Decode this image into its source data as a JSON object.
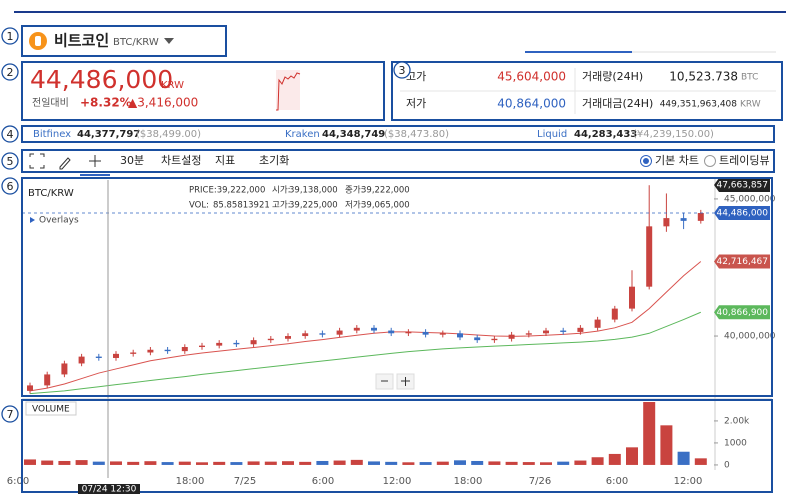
{
  "markers": [
    "1",
    "2",
    "3",
    "4",
    "5",
    "6",
    "7"
  ],
  "header": {
    "coin": "비트코인",
    "pair": "BTC/KRW"
  },
  "price": {
    "value": "44,486,000",
    "unit": "KRW",
    "change_label": "전일대비",
    "change_pct": "+8.32%",
    "change_amt": "▲3,416,000"
  },
  "stats": {
    "high_label": "고가",
    "high": "45,604,000",
    "low_label": "저가",
    "low": "40,864,000",
    "vol_label": "거래량(24H)",
    "vol": "10,523.738",
    "vol_unit": "BTC",
    "amt_label": "거래대금(24H)",
    "amt": "449,351,963,408",
    "amt_unit": "KRW"
  },
  "exchanges": [
    {
      "name": "Bitfinex",
      "price": "44,377,797",
      "alt": "($38,499.00)"
    },
    {
      "name": "Kraken",
      "price": "44,348,749",
      "alt": "($38,473.80)"
    },
    {
      "name": "Liquid",
      "price": "44,283,433",
      "alt": "(¥4,239,150.00)"
    }
  ],
  "toolbar": {
    "interval": "30분",
    "settings": "차트설정",
    "indicators": "지표",
    "reset": "초기화",
    "basic": "기본 차트",
    "tradingview": "트레이딩뷰"
  },
  "chart": {
    "symbol": "BTC/KRW",
    "overlays": "Overlays",
    "info": [
      "PRICE:39,222,000",
      "시가:",
      "39,138,000",
      "종가:",
      "39,222,000",
      "VOL:",
      "85.85813921",
      "고가:",
      "39,225,000",
      "저가:",
      "39,065,000"
    ],
    "ylim": [
      37850000,
      45690000
    ],
    "yticks": [
      {
        "value": 40000000,
        "label": "40,000,000"
      },
      {
        "value": 45000000,
        "label": "45,000,000"
      }
    ],
    "price_tags": [
      {
        "value": 47663857,
        "label": "47,663,857",
        "color": "#222222"
      },
      {
        "value": 44486000,
        "label": "44,486,000",
        "color": "#2f62c0"
      },
      {
        "value": 42716467,
        "label": "42,716,467",
        "color": "#c9544d"
      },
      {
        "value": 40866900,
        "label": "40,866,900",
        "color": "#5cb85c"
      }
    ],
    "up_color": "#c9433f",
    "down_color": "#3a6fc4",
    "open": [
      38000000,
      38200000,
      38600000,
      39000000,
      39250000,
      39200000,
      39350000,
      39400000,
      39500000,
      39450000,
      39600000,
      39650000,
      39750000,
      39700000,
      39850000,
      39900000,
      40000000,
      40100000,
      40050000,
      40200000,
      40300000,
      40200000,
      40100000,
      40150000,
      40050000,
      40100000,
      39950000,
      39850000,
      39900000,
      40050000,
      40100000,
      40200000,
      40150000,
      40300000,
      40600000,
      41000000,
      41800000,
      44000000,
      44300000,
      44200000
    ],
    "high": [
      38300000,
      38700000,
      39100000,
      39350000,
      39350000,
      39450000,
      39500000,
      39600000,
      39600000,
      39700000,
      39750000,
      39850000,
      39850000,
      39950000,
      40000000,
      40100000,
      40200000,
      40200000,
      40300000,
      40400000,
      40400000,
      40300000,
      40250000,
      40250000,
      40200000,
      40200000,
      40050000,
      40000000,
      40150000,
      40200000,
      40300000,
      40300000,
      40400000,
      40700000,
      41100000,
      42400000,
      45500000,
      45200000,
      44500000,
      44600000
    ],
    "low": [
      37900000,
      38100000,
      38500000,
      38900000,
      39100000,
      39100000,
      39250000,
      39300000,
      39350000,
      39350000,
      39500000,
      39550000,
      39600000,
      39600000,
      39750000,
      39800000,
      39900000,
      39950000,
      39950000,
      40100000,
      40100000,
      40000000,
      40000000,
      39950000,
      39950000,
      39850000,
      39750000,
      39750000,
      39800000,
      39950000,
      40000000,
      40050000,
      40050000,
      40200000,
      40500000,
      40900000,
      41700000,
      43800000,
      43900000,
      44100000
    ],
    "close": [
      38200000,
      38600000,
      39000000,
      39250000,
      39200000,
      39350000,
      39400000,
      39500000,
      39450000,
      39600000,
      39650000,
      39750000,
      39700000,
      39850000,
      39900000,
      40000000,
      40100000,
      40050000,
      40200000,
      40300000,
      40200000,
      40100000,
      40150000,
      40050000,
      40100000,
      39950000,
      39850000,
      39900000,
      40050000,
      40100000,
      40200000,
      40150000,
      40300000,
      40600000,
      41000000,
      41800000,
      44000000,
      44300000,
      44200000,
      44486000
    ],
    "ma_short": {
      "color": "#d9534f",
      "values": [
        38000000,
        38100000,
        38250000,
        38450000,
        38650000,
        38800000,
        38950000,
        39100000,
        39200000,
        39300000,
        39380000,
        39450000,
        39520000,
        39580000,
        39650000,
        39720000,
        39800000,
        39870000,
        39950000,
        40030000,
        40100000,
        40150000,
        40150000,
        40130000,
        40110000,
        40080000,
        40040000,
        40000000,
        39990000,
        40000000,
        40030000,
        40060000,
        40100000,
        40180000,
        40300000,
        40500000,
        41000000,
        41600000,
        42200000,
        42716467
      ]
    },
    "ma_long": {
      "color": "#5cb85c",
      "values": [
        37900000,
        37950000,
        38000000,
        38080000,
        38150000,
        38230000,
        38300000,
        38380000,
        38450000,
        38520000,
        38600000,
        38670000,
        38740000,
        38810000,
        38880000,
        38950000,
        39020000,
        39090000,
        39160000,
        39230000,
        39300000,
        39370000,
        39430000,
        39480000,
        39530000,
        39570000,
        39600000,
        39630000,
        39660000,
        39690000,
        39720000,
        39750000,
        39780000,
        39820000,
        39880000,
        39960000,
        40100000,
        40350000,
        40600000,
        40866900
      ]
    },
    "volume_label": "VOLUME",
    "vlim": [
      -230,
      2860
    ],
    "vticks": [
      {
        "value": 2000,
        "label": "2.00k"
      },
      1000,
      0
    ],
    "volume": [
      250,
      200,
      180,
      220,
      150,
      160,
      140,
      170,
      130,
      150,
      120,
      140,
      130,
      160,
      150,
      170,
      140,
      180,
      200,
      230,
      160,
      140,
      120,
      130,
      150,
      210,
      180,
      160,
      140,
      130,
      120,
      150,
      200,
      350,
      500,
      800,
      2900,
      1800,
      600,
      300
    ],
    "xlabels": [
      "6:00",
      "18:00",
      "7/25",
      "6:00",
      "12:00",
      "18:00",
      "7/26",
      "6:00",
      "12:00"
    ],
    "crosshair": "07/24 12:30"
  }
}
